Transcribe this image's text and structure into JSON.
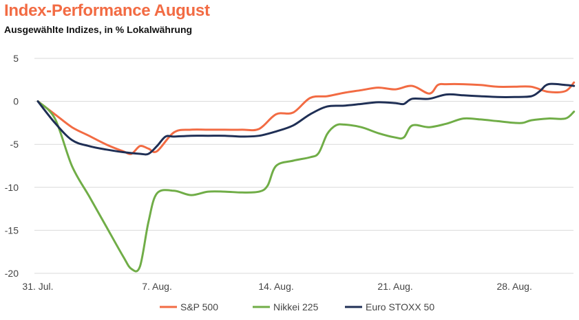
{
  "chart_data": {
    "type": "line",
    "title": "Index-Performance August",
    "subtitle": "Ausgewählte Indizes, in % Lokalwährung",
    "xlabel": "",
    "ylabel": "",
    "ylim": [
      -20,
      5
    ],
    "yticks": [
      5,
      0,
      -5,
      -10,
      -15,
      -20
    ],
    "x_ticks": [
      {
        "day": 0,
        "label": "31. Jul."
      },
      {
        "day": 7,
        "label": "7. Aug."
      },
      {
        "day": 14,
        "label": "14. Aug."
      },
      {
        "day": 21,
        "label": "21. Aug."
      },
      {
        "day": 28,
        "label": "28. Aug."
      }
    ],
    "grid": true,
    "legend_position": "bottom",
    "colors": {
      "title": "#f26b43",
      "grid": "#d9d9d9"
    },
    "series": [
      {
        "name": "S&P 500",
        "color": "#f26b43",
        "points": [
          [
            0,
            0
          ],
          [
            1,
            -1.5
          ],
          [
            2,
            -3
          ],
          [
            3,
            -4
          ],
          [
            4,
            -5
          ],
          [
            5,
            -5.8
          ],
          [
            5.5,
            -6.1
          ],
          [
            6,
            -5.2
          ],
          [
            6.5,
            -5.5
          ],
          [
            7,
            -5.8
          ],
          [
            8,
            -3.6
          ],
          [
            9,
            -3.3
          ],
          [
            10,
            -3.3
          ],
          [
            11,
            -3.3
          ],
          [
            12,
            -3.3
          ],
          [
            13,
            -3.2
          ],
          [
            14,
            -1.5
          ],
          [
            15,
            -1.3
          ],
          [
            16,
            0.4
          ],
          [
            17,
            0.6
          ],
          [
            18,
            1.0
          ],
          [
            19,
            1.3
          ],
          [
            20,
            1.6
          ],
          [
            21,
            1.4
          ],
          [
            22,
            1.8
          ],
          [
            23,
            0.9
          ],
          [
            23.5,
            1.9
          ],
          [
            24,
            2.0
          ],
          [
            25,
            2.0
          ],
          [
            26,
            1.9
          ],
          [
            27,
            1.7
          ],
          [
            28,
            1.7
          ],
          [
            29,
            1.7
          ],
          [
            30,
            1.1
          ],
          [
            31,
            1.2
          ],
          [
            31.5,
            2.2
          ]
        ]
      },
      {
        "name": "Nikkei 225",
        "color": "#70ad47",
        "points": [
          [
            0,
            0
          ],
          [
            1,
            -2
          ],
          [
            2,
            -7.5
          ],
          [
            3,
            -11
          ],
          [
            4,
            -14.5
          ],
          [
            5,
            -18
          ],
          [
            5.5,
            -19.5
          ],
          [
            6,
            -19.2
          ],
          [
            6.5,
            -14
          ],
          [
            7,
            -10.7
          ],
          [
            8,
            -10.4
          ],
          [
            9,
            -10.9
          ],
          [
            10,
            -10.5
          ],
          [
            11,
            -10.5
          ],
          [
            12,
            -10.6
          ],
          [
            13,
            -10.5
          ],
          [
            13.5,
            -9.8
          ],
          [
            14,
            -7.5
          ],
          [
            15,
            -6.9
          ],
          [
            16,
            -6.5
          ],
          [
            16.5,
            -6
          ],
          [
            17,
            -3.8
          ],
          [
            17.5,
            -2.8
          ],
          [
            18,
            -2.7
          ],
          [
            19,
            -3.0
          ],
          [
            20,
            -3.7
          ],
          [
            21,
            -4.2
          ],
          [
            21.5,
            -4.2
          ],
          [
            22,
            -2.8
          ],
          [
            23,
            -3.0
          ],
          [
            24,
            -2.6
          ],
          [
            25,
            -2.0
          ],
          [
            26,
            -2.1
          ],
          [
            27,
            -2.3
          ],
          [
            28,
            -2.5
          ],
          [
            28.5,
            -2.5
          ],
          [
            29,
            -2.2
          ],
          [
            30,
            -2.0
          ],
          [
            31,
            -2.0
          ],
          [
            31.5,
            -1.2
          ]
        ]
      },
      {
        "name": "Euro STOXX 50",
        "color": "#1f2f55",
        "points": [
          [
            0,
            0
          ],
          [
            1,
            -2.5
          ],
          [
            2,
            -4.5
          ],
          [
            3,
            -5.2
          ],
          [
            4,
            -5.6
          ],
          [
            5,
            -5.9
          ],
          [
            6,
            -6.1
          ],
          [
            6.5,
            -6.1
          ],
          [
            7,
            -5.2
          ],
          [
            7.5,
            -4.1
          ],
          [
            8,
            -4.1
          ],
          [
            9,
            -4.0
          ],
          [
            10,
            -4.0
          ],
          [
            11,
            -4.0
          ],
          [
            12,
            -4.1
          ],
          [
            13,
            -4.0
          ],
          [
            14,
            -3.5
          ],
          [
            15,
            -2.8
          ],
          [
            16,
            -1.5
          ],
          [
            17,
            -0.6
          ],
          [
            18,
            -0.5
          ],
          [
            19,
            -0.3
          ],
          [
            20,
            -0.1
          ],
          [
            21,
            -0.2
          ],
          [
            21.5,
            -0.3
          ],
          [
            22,
            0.3
          ],
          [
            23,
            0.3
          ],
          [
            24,
            0.8
          ],
          [
            25,
            0.7
          ],
          [
            26,
            0.6
          ],
          [
            27,
            0.5
          ],
          [
            28,
            0.5
          ],
          [
            29,
            0.6
          ],
          [
            29.5,
            1.2
          ],
          [
            30,
            2.0
          ],
          [
            31,
            1.9
          ],
          [
            31.5,
            1.8
          ]
        ]
      }
    ]
  }
}
